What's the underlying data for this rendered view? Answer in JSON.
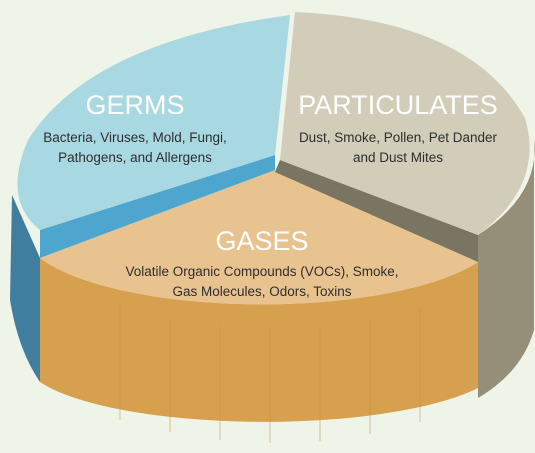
{
  "slices": [
    {
      "title": "GERMS",
      "description": [
        "Bacteria, Viruses, Mold, Fungi,",
        "Pathogens, and Allergens"
      ]
    },
    {
      "title": "PARTICULATES",
      "description": [
        "Dust, Smoke, Pollen, Pet Dander",
        "and Dust Mites"
      ]
    },
    {
      "title": "GASES",
      "description": [
        "Volatile Organic Compounds (VOCs), Smoke,",
        "Gas Molecules, Odors, Toxins"
      ]
    }
  ]
}
